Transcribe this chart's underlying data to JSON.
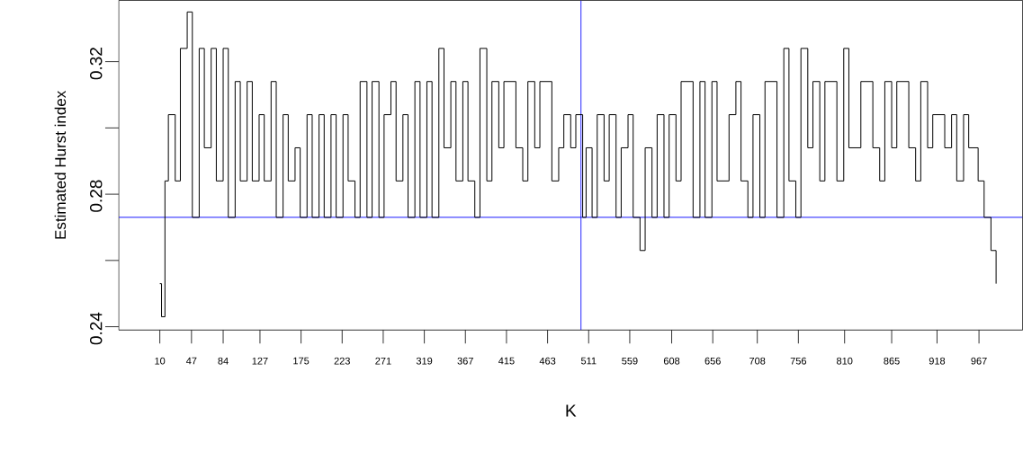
{
  "chart_data": {
    "type": "step",
    "xlabel": "K",
    "ylabel": "Estimated Hurst index",
    "xlim": [
      -38,
      1018
    ],
    "ylim": [
      0.239,
      0.3385
    ],
    "xticks": [
      10,
      47,
      84,
      127,
      175,
      223,
      271,
      319,
      367,
      415,
      463,
      511,
      559,
      608,
      656,
      708,
      756,
      810,
      865,
      918,
      967
    ],
    "yticks": [
      0.24,
      {
        "value": 0.26,
        "label": null
      },
      0.28,
      {
        "value": 0.3,
        "label": null
      },
      0.32
    ],
    "ref_lines": [
      {
        "axis": "x",
        "value": 502,
        "color": "#0000ff"
      },
      {
        "axis": "y",
        "value": 0.273,
        "color": "#0000ff"
      }
    ],
    "color": "#000000",
    "x": [
      10,
      12,
      16,
      20,
      28,
      34,
      42,
      48,
      56,
      62,
      70,
      76,
      84,
      90,
      98,
      104,
      112,
      118,
      126,
      132,
      140,
      146,
      154,
      160,
      168,
      174,
      182,
      188,
      196,
      202,
      210,
      216,
      224,
      230,
      238,
      244,
      252,
      258,
      266,
      272,
      280,
      286,
      294,
      300,
      308,
      314,
      322,
      328,
      336,
      342,
      350,
      356,
      364,
      370,
      378,
      384,
      392,
      398,
      406,
      412,
      420,
      426,
      434,
      440,
      448,
      454,
      462,
      468,
      476,
      482,
      490,
      496,
      504,
      508,
      515,
      521,
      529,
      535,
      543,
      549,
      557,
      563,
      571,
      577,
      585,
      591,
      599,
      605,
      613,
      619,
      627,
      633,
      641,
      647,
      655,
      661,
      669,
      675,
      683,
      689,
      697,
      703,
      711,
      717,
      725,
      731,
      739,
      745,
      753,
      759,
      767,
      773,
      781,
      787,
      795,
      801,
      809,
      815,
      823,
      829,
      837,
      843,
      851,
      857,
      865,
      871,
      879,
      885,
      893,
      899,
      907,
      913,
      921,
      927,
      935,
      941,
      949,
      955,
      961,
      966,
      973,
      981,
      987
    ],
    "values": [
      0.253,
      0.243,
      0.284,
      0.304,
      0.284,
      0.324,
      0.335,
      0.273,
      0.324,
      0.294,
      0.324,
      0.284,
      0.324,
      0.273,
      0.314,
      0.284,
      0.314,
      0.284,
      0.304,
      0.284,
      0.314,
      0.273,
      0.304,
      0.284,
      0.294,
      0.273,
      0.304,
      0.273,
      0.304,
      0.273,
      0.304,
      0.273,
      0.304,
      0.284,
      0.273,
      0.314,
      0.273,
      0.314,
      0.273,
      0.304,
      0.314,
      0.284,
      0.304,
      0.273,
      0.314,
      0.273,
      0.314,
      0.273,
      0.324,
      0.294,
      0.314,
      0.284,
      0.314,
      0.284,
      0.273,
      0.324,
      0.284,
      0.314,
      0.294,
      0.314,
      0.314,
      0.294,
      0.284,
      0.314,
      0.294,
      0.314,
      0.314,
      0.284,
      0.294,
      0.304,
      0.294,
      0.304,
      0.273,
      0.294,
      0.273,
      0.304,
      0.284,
      0.304,
      0.273,
      0.294,
      0.304,
      0.273,
      0.263,
      0.294,
      0.273,
      0.304,
      0.273,
      0.304,
      0.284,
      0.314,
      0.314,
      0.273,
      0.314,
      0.273,
      0.314,
      0.284,
      0.284,
      0.304,
      0.314,
      0.284,
      0.273,
      0.304,
      0.273,
      0.314,
      0.314,
      0.273,
      0.324,
      0.284,
      0.273,
      0.324,
      0.294,
      0.314,
      0.284,
      0.314,
      0.314,
      0.284,
      0.324,
      0.294,
      0.294,
      0.314,
      0.314,
      0.294,
      0.284,
      0.314,
      0.294,
      0.314,
      0.314,
      0.294,
      0.284,
      0.314,
      0.294,
      0.304,
      0.304,
      0.294,
      0.304,
      0.284,
      0.304,
      0.294,
      0.294,
      0.284,
      0.273,
      0.263,
      0.253
    ]
  }
}
